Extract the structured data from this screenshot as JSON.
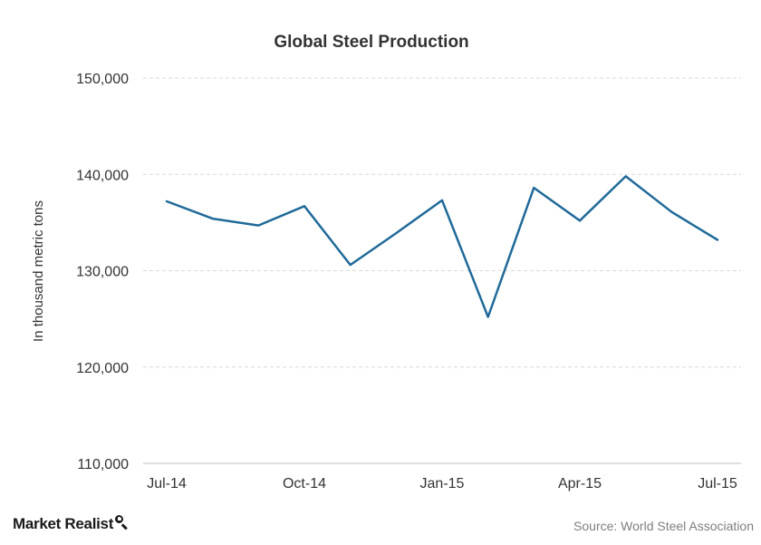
{
  "chart_data": {
    "type": "line",
    "title": "Global  Steel  Production",
    "ylabel": "In thousand metric tons",
    "xlabel": "",
    "ylim": [
      110000,
      150000
    ],
    "yticks": [
      110000,
      120000,
      130000,
      140000,
      150000
    ],
    "ytick_labels": [
      "110,000",
      "120,000",
      "130,000",
      "140,000",
      "150,000"
    ],
    "x": [
      "Jul-14",
      "Aug-14",
      "Sep-14",
      "Oct-14",
      "Nov-14",
      "Dec-14",
      "Jan-15",
      "Feb-15",
      "Mar-15",
      "Apr-15",
      "May-15",
      "Jun-15",
      "Jul-15"
    ],
    "xtick_labels": [
      "Jul-14",
      "Oct-14",
      "Jan-15",
      "Apr-15",
      "Jul-15"
    ],
    "series": [
      {
        "values": [
          137200,
          135400,
          134700,
          136700,
          130600,
          133900,
          137300,
          125200,
          138600,
          135200,
          139800,
          136100,
          133200
        ],
        "color": "#1f6a99"
      }
    ],
    "grid": true,
    "legend": "none"
  },
  "footer": {
    "logo_text": "Market Realist",
    "logo_icon": "magnifier-chart-icon",
    "source": "Source:  World Steel Association"
  }
}
